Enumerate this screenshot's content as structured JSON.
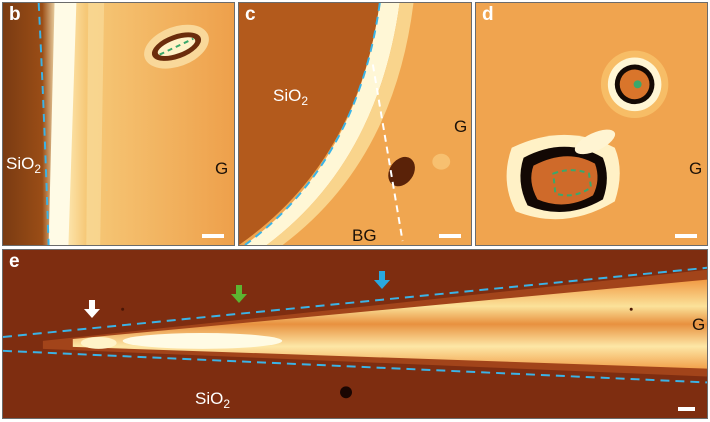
{
  "panels": {
    "b": {
      "label": "b",
      "materials": {
        "sio2": "SiO",
        "sio2_sub": "2",
        "g": "G"
      }
    },
    "c": {
      "label": "c",
      "materials": {
        "sio2": "SiO",
        "sio2_sub": "2",
        "g": "G",
        "bg": "BG"
      }
    },
    "d": {
      "label": "d",
      "materials": {
        "g": "G"
      }
    },
    "e": {
      "label": "e",
      "materials": {
        "sio2": "SiO",
        "sio2_sub": "2",
        "g": "G"
      }
    }
  },
  "arrows": [
    {
      "name": "white-arrow",
      "color": "#ffffff"
    },
    {
      "name": "green-arrow",
      "color": "#5cb531"
    },
    {
      "name": "blue-arrow",
      "color": "#29a8df"
    }
  ],
  "colors": {
    "dashed_boundary": "#3bb3e6",
    "dashed_white": "#ffffff",
    "dashed_green": "#3aa86b",
    "scale_bar": "#ffffff"
  }
}
